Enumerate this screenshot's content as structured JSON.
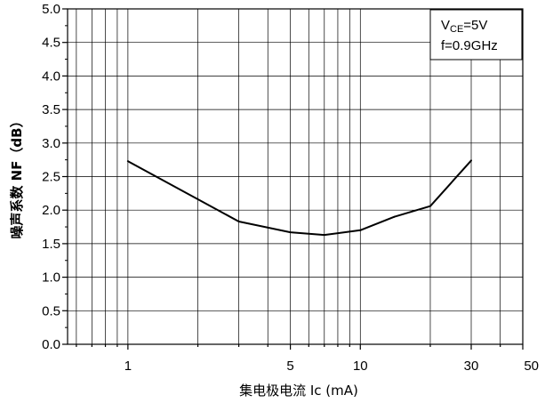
{
  "chart_data": {
    "type": "line",
    "title": "",
    "xlabel": "集电极电流   Ic (mA)",
    "ylabel": "噪声系数 NF（dB）",
    "x_scale": "log",
    "xlim": [
      0.55,
      50
    ],
    "ylim": [
      0.0,
      5.0
    ],
    "grid": true,
    "x_ticks": [
      {
        "value": 1,
        "label": "1"
      },
      {
        "value": 5,
        "label": "5"
      },
      {
        "value": 10,
        "label": "10"
      },
      {
        "value": 30,
        "label": "30"
      },
      {
        "value": 50,
        "label": "50"
      }
    ],
    "y_ticks": [
      {
        "value": 0.0,
        "label": "0.0"
      },
      {
        "value": 0.5,
        "label": "0.5"
      },
      {
        "value": 1.0,
        "label": "1.0"
      },
      {
        "value": 1.5,
        "label": "1.5"
      },
      {
        "value": 2.0,
        "label": "2.0"
      },
      {
        "value": 2.5,
        "label": "2.5"
      },
      {
        "value": 3.0,
        "label": "3.0"
      },
      {
        "value": 3.5,
        "label": "3.5"
      },
      {
        "value": 4.0,
        "label": "4.0"
      },
      {
        "value": 4.5,
        "label": "4.5"
      },
      {
        "value": 5.0,
        "label": "5.0"
      }
    ],
    "series": [
      {
        "x": [
          1,
          3,
          5,
          7,
          10,
          14,
          20,
          30
        ],
        "y": [
          2.73,
          1.83,
          1.67,
          1.63,
          1.7,
          1.9,
          2.06,
          2.74
        ]
      }
    ],
    "annotation": {
      "lines": [
        {
          "main": "V",
          "sub": "CE",
          "tail": "=5V"
        },
        {
          "main": "f=0.9GHz",
          "sub": "",
          "tail": ""
        }
      ],
      "placement": "top-right"
    },
    "line_color": "#000000",
    "grid_color": "#000000"
  }
}
